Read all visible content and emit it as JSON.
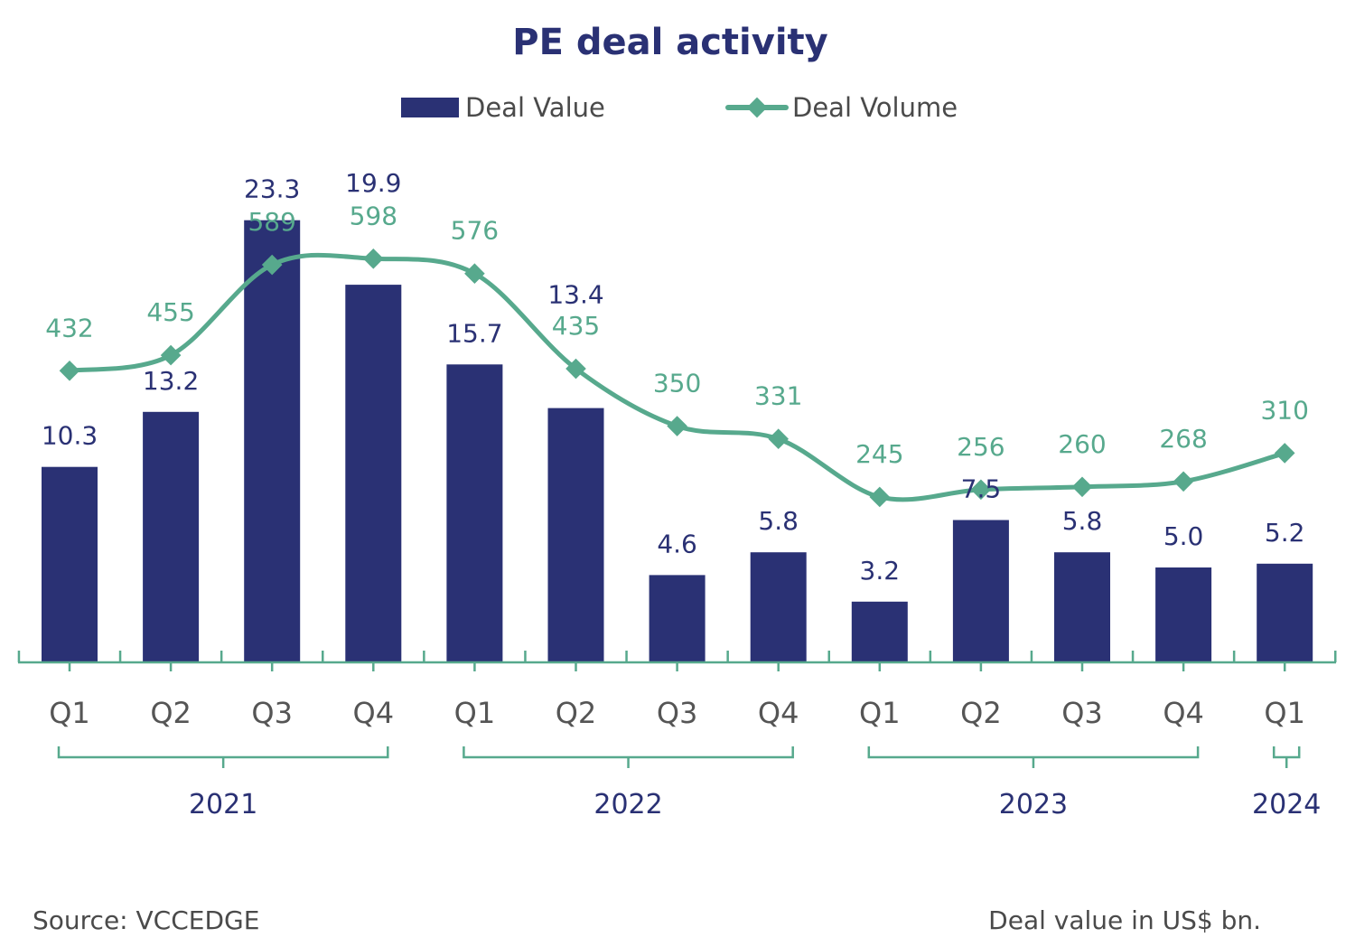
{
  "chart_data": {
    "type": "bar",
    "title": "PE deal activity",
    "categories": [
      "Q1",
      "Q2",
      "Q3",
      "Q4",
      "Q1",
      "Q2",
      "Q3",
      "Q4",
      "Q1",
      "Q2",
      "Q3",
      "Q4",
      "Q1"
    ],
    "years": [
      {
        "label": "2021",
        "quarters": 4
      },
      {
        "label": "2022",
        "quarters": 4
      },
      {
        "label": "2023",
        "quarters": 4
      },
      {
        "label": "2024",
        "quarters": 1
      }
    ],
    "series": [
      {
        "name": "Deal Value",
        "type": "bar",
        "color": "#2a3174",
        "values": [
          10.3,
          13.2,
          23.3,
          19.9,
          15.7,
          13.4,
          4.6,
          5.8,
          3.2,
          7.5,
          5.8,
          5.0,
          5.2
        ]
      },
      {
        "name": "Deal Volume",
        "type": "line",
        "smooth": true,
        "marker": "diamond",
        "color": "#57a98d",
        "values": [
          432,
          455,
          589,
          598,
          576,
          435,
          350,
          331,
          245,
          256,
          260,
          268,
          310
        ]
      }
    ],
    "data_labels": true,
    "grid": false,
    "legend": "top-center",
    "source": "Source: VCCEDGE",
    "unit_note": "Deal value in US$ bn."
  }
}
